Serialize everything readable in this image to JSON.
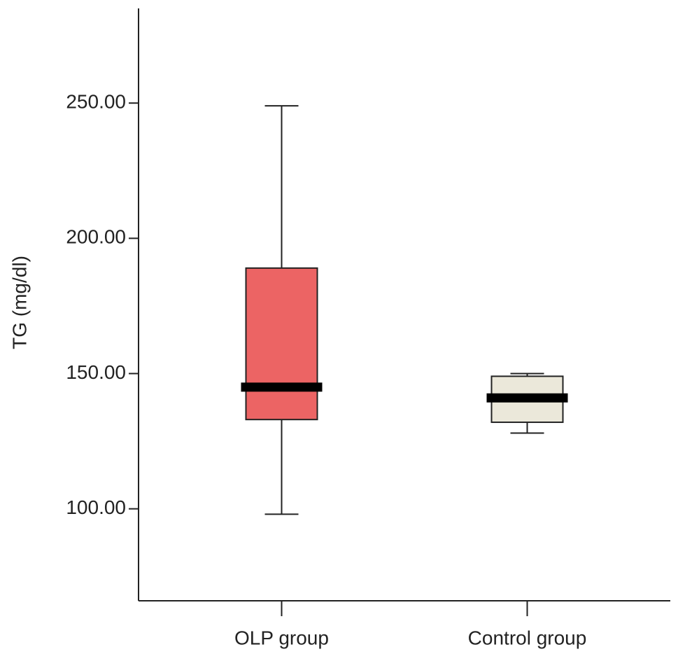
{
  "chart_data": {
    "type": "box",
    "y_label": "TG (mg/dl)",
    "categories": [
      "OLP group",
      "Control group"
    ],
    "colors": [
      "#ec6464",
      "#ebe8da"
    ],
    "min": [
      98,
      128
    ],
    "q1": [
      133,
      132
    ],
    "median": [
      145,
      141
    ],
    "q3": [
      189,
      149
    ],
    "max": [
      249,
      150
    ],
    "ylim": [
      66,
      285
    ],
    "yticks": [
      {
        "value": 100,
        "label": "100.00"
      },
      {
        "value": 150,
        "label": "150.00"
      },
      {
        "value": 200,
        "label": "200.00"
      },
      {
        "value": 250,
        "label": "250.00"
      }
    ]
  }
}
